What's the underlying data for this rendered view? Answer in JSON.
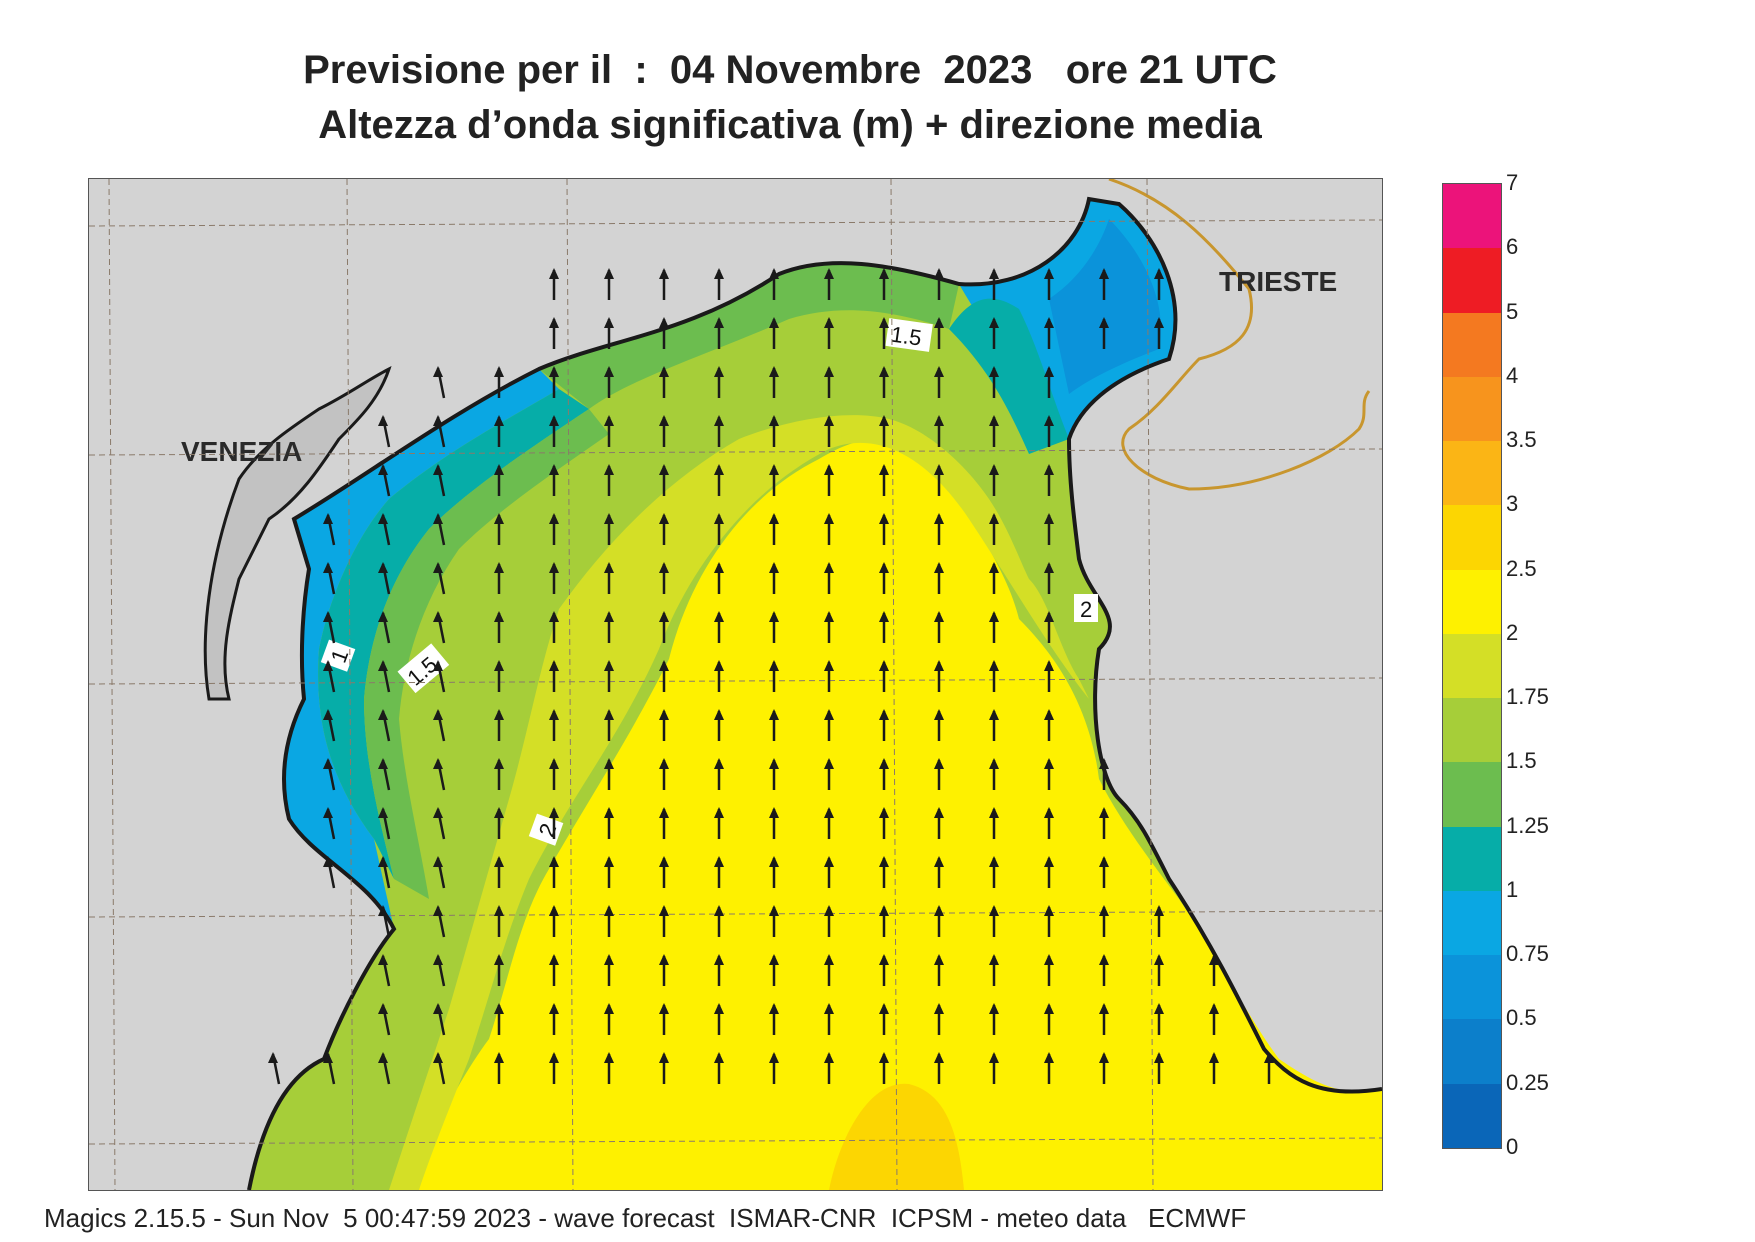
{
  "title_line1": "Previsione per il  :  04 Novembre  2023   ore 21 UTC",
  "title_line2": "Altezza d’onda significativa (m) + direzione media",
  "map": {
    "cities": [
      "VENEZIA",
      "TRIESTE"
    ],
    "contour_labels": [
      "1.5",
      "1",
      "1.5",
      "2",
      "2"
    ],
    "land_color": "#d3d3d3",
    "coast_color": "#1a1a1a",
    "border_color": "#c8962e",
    "arrow_direction": "north (slightly north-northwest near western coast)"
  },
  "colorbar": {
    "levels": [
      "0",
      "0.25",
      "0.5",
      "0.75",
      "1",
      "1.25",
      "1.5",
      "1.75",
      "2",
      "2.5",
      "3",
      "3.5",
      "4",
      "5",
      "6",
      "7"
    ],
    "colors": [
      "#0a66b8",
      "#0c7fcb",
      "#0b93da",
      "#0aa7e3",
      "#06ada8",
      "#6cbd4f",
      "#a6ce39",
      "#d4df26",
      "#fef100",
      "#fcd602",
      "#fbb515",
      "#f7941d",
      "#f47920",
      "#ee1c24",
      "#ec137a"
    ]
  },
  "footer": "Magics 2.15.5 - Sun Nov  5 00:47:59 2023 - wave forecast  ISMAR-CNR  ICPSM - meteo data   ECMWF"
}
